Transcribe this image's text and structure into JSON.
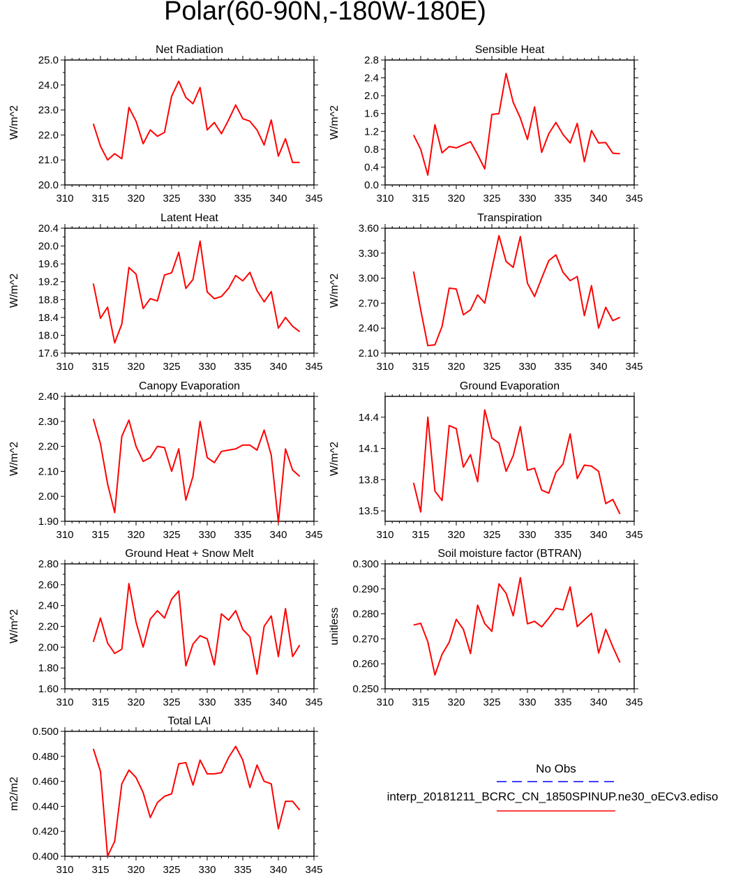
{
  "figure": {
    "title": "Polar(60-90N,-180W-180E)",
    "legend": {
      "obs_label": "No Obs",
      "model_label": "interp_20181211_BCRC_CN_1850SPINUP.ne30_oECv3.ediso",
      "obs_color": "#0000ff",
      "model_color": "#ff0000",
      "placement": "bottom-right"
    }
  },
  "chart_data": [
    {
      "id": "net-radiation",
      "type": "line",
      "title": "Net Radiation",
      "ylabel": "W/m^2",
      "xlim": [
        310,
        345
      ],
      "ylim": [
        20.0,
        25.0
      ],
      "xticks": [
        310,
        315,
        320,
        325,
        330,
        335,
        340,
        345
      ],
      "yticks": [
        "20.0",
        "21.0",
        "22.0",
        "23.0",
        "24.0",
        "25.0"
      ],
      "x": [
        314,
        315,
        316,
        317,
        318,
        319,
        320,
        321,
        322,
        323,
        324,
        325,
        326,
        327,
        328,
        329,
        330,
        331,
        332,
        333,
        334,
        335,
        336,
        337,
        338,
        339,
        340,
        341,
        342,
        343
      ],
      "series": [
        {
          "name": "model",
          "color": "#ff0000",
          "values": [
            22.45,
            21.55,
            21.0,
            21.25,
            21.05,
            23.1,
            22.55,
            21.65,
            22.2,
            21.95,
            22.1,
            23.55,
            24.15,
            23.5,
            23.25,
            23.9,
            22.2,
            22.5,
            22.05,
            22.6,
            23.2,
            22.65,
            22.55,
            22.2,
            21.6,
            22.6,
            21.15,
            21.85,
            20.9,
            20.9
          ]
        }
      ]
    },
    {
      "id": "sensible-heat",
      "type": "line",
      "title": "Sensible Heat",
      "ylabel": "W/m^2",
      "xlim": [
        310,
        345
      ],
      "ylim": [
        0.0,
        2.8
      ],
      "xticks": [
        310,
        315,
        320,
        325,
        330,
        335,
        340,
        345
      ],
      "yticks": [
        "0.0",
        "0.4",
        "0.8",
        "1.2",
        "1.6",
        "2.0",
        "2.4",
        "2.8"
      ],
      "x": [
        314,
        315,
        316,
        317,
        318,
        319,
        320,
        321,
        322,
        323,
        324,
        325,
        326,
        327,
        328,
        329,
        330,
        331,
        332,
        333,
        334,
        335,
        336,
        337,
        338,
        339,
        340,
        341,
        342,
        343
      ],
      "series": [
        {
          "name": "model",
          "color": "#ff0000",
          "values": [
            1.12,
            0.8,
            0.22,
            1.35,
            0.72,
            0.86,
            0.83,
            0.9,
            0.97,
            0.68,
            0.36,
            1.58,
            1.6,
            2.5,
            1.85,
            1.5,
            1.02,
            1.75,
            0.73,
            1.15,
            1.4,
            1.13,
            0.94,
            1.38,
            0.52,
            1.22,
            0.94,
            0.95,
            0.71,
            0.7
          ]
        }
      ]
    },
    {
      "id": "latent-heat",
      "type": "line",
      "title": "Latent Heat",
      "ylabel": "W/m^2",
      "xlim": [
        310,
        345
      ],
      "ylim": [
        17.6,
        20.4
      ],
      "xticks": [
        310,
        315,
        320,
        325,
        330,
        335,
        340,
        345
      ],
      "yticks": [
        "17.6",
        "18.0",
        "18.4",
        "18.8",
        "19.2",
        "19.6",
        "20.0",
        "20.4"
      ],
      "x": [
        314,
        315,
        316,
        317,
        318,
        319,
        320,
        321,
        322,
        323,
        324,
        325,
        326,
        327,
        328,
        329,
        330,
        331,
        332,
        333,
        334,
        335,
        336,
        337,
        338,
        339,
        340,
        341,
        342,
        343
      ],
      "series": [
        {
          "name": "model",
          "color": "#ff0000",
          "values": [
            19.16,
            18.38,
            18.63,
            17.83,
            18.25,
            19.52,
            19.37,
            18.6,
            18.82,
            18.77,
            19.35,
            19.4,
            19.86,
            19.05,
            19.25,
            20.11,
            18.97,
            18.82,
            18.87,
            19.05,
            19.34,
            19.22,
            19.41,
            19.0,
            18.75,
            18.98,
            18.16,
            18.4,
            18.2,
            18.08
          ]
        }
      ]
    },
    {
      "id": "transpiration",
      "type": "line",
      "title": "Transpiration",
      "ylabel": "W/m^2",
      "xlim": [
        310,
        345
      ],
      "ylim": [
        2.1,
        3.6
      ],
      "xticks": [
        310,
        315,
        320,
        325,
        330,
        335,
        340,
        345
      ],
      "yticks": [
        "2.10",
        "2.40",
        "2.70",
        "3.00",
        "3.30",
        "3.60"
      ],
      "x": [
        314,
        315,
        316,
        317,
        318,
        319,
        320,
        321,
        322,
        323,
        324,
        325,
        326,
        327,
        328,
        329,
        330,
        331,
        332,
        333,
        334,
        335,
        336,
        337,
        338,
        339,
        340,
        341,
        342,
        343
      ],
      "series": [
        {
          "name": "model",
          "color": "#ff0000",
          "values": [
            3.08,
            2.62,
            2.19,
            2.2,
            2.42,
            2.88,
            2.87,
            2.56,
            2.62,
            2.8,
            2.7,
            3.11,
            3.51,
            3.2,
            3.13,
            3.5,
            2.94,
            2.78,
            3.0,
            3.21,
            3.28,
            3.07,
            2.97,
            3.02,
            2.55,
            2.91,
            2.4,
            2.65,
            2.49,
            2.53
          ]
        }
      ]
    },
    {
      "id": "canopy-evaporation",
      "type": "line",
      "title": "Canopy Evaporation",
      "ylabel": "W/m^2",
      "xlim": [
        310,
        345
      ],
      "ylim": [
        1.9,
        2.4
      ],
      "xticks": [
        310,
        315,
        320,
        325,
        330,
        335,
        340,
        345
      ],
      "yticks": [
        "1.90",
        "2.00",
        "2.10",
        "2.20",
        "2.30",
        "2.40"
      ],
      "x": [
        314,
        315,
        316,
        317,
        318,
        319,
        320,
        321,
        322,
        323,
        324,
        325,
        326,
        327,
        328,
        329,
        330,
        331,
        332,
        333,
        334,
        335,
        336,
        337,
        338,
        339,
        340,
        341,
        342,
        343
      ],
      "series": [
        {
          "name": "model",
          "color": "#ff0000",
          "values": [
            2.31,
            2.21,
            2.05,
            1.935,
            2.24,
            2.305,
            2.2,
            2.14,
            2.155,
            2.2,
            2.195,
            2.1,
            2.19,
            1.985,
            2.08,
            2.3,
            2.155,
            2.135,
            2.18,
            2.185,
            2.19,
            2.205,
            2.205,
            2.185,
            2.265,
            2.165,
            1.895,
            2.19,
            2.105,
            2.08
          ]
        }
      ]
    },
    {
      "id": "ground-evaporation",
      "type": "line",
      "title": "Ground Evaporation",
      "ylabel": "W/m^2",
      "xlim": [
        310,
        345
      ],
      "ylim": [
        13.4,
        14.6
      ],
      "xticks": [
        310,
        315,
        320,
        325,
        330,
        335,
        340,
        345
      ],
      "yticks": [
        "13.5",
        "13.8",
        "14.1",
        "14.4"
      ],
      "x": [
        314,
        315,
        316,
        317,
        318,
        319,
        320,
        321,
        322,
        323,
        324,
        325,
        326,
        327,
        328,
        329,
        330,
        331,
        332,
        333,
        334,
        335,
        336,
        337,
        338,
        339,
        340,
        341,
        342,
        343
      ],
      "series": [
        {
          "name": "model",
          "color": "#ff0000",
          "values": [
            13.77,
            13.49,
            14.4,
            13.69,
            13.6,
            14.32,
            14.29,
            13.92,
            14.04,
            13.78,
            14.47,
            14.2,
            14.15,
            13.88,
            14.03,
            14.31,
            13.89,
            13.91,
            13.7,
            13.67,
            13.87,
            13.95,
            14.24,
            13.81,
            13.94,
            13.93,
            13.88,
            13.57,
            13.61,
            13.47
          ]
        }
      ]
    },
    {
      "id": "ground-heat-snow-melt",
      "type": "line",
      "title": "Ground Heat + Snow Melt",
      "ylabel": "W/m^2",
      "xlim": [
        310,
        345
      ],
      "ylim": [
        1.6,
        2.8
      ],
      "xticks": [
        310,
        315,
        320,
        325,
        330,
        335,
        340,
        345
      ],
      "yticks": [
        "1.60",
        "1.80",
        "2.00",
        "2.20",
        "2.40",
        "2.60",
        "2.80"
      ],
      "x": [
        314,
        315,
        316,
        317,
        318,
        319,
        320,
        321,
        322,
        323,
        324,
        325,
        326,
        327,
        328,
        329,
        330,
        331,
        332,
        333,
        334,
        335,
        336,
        337,
        338,
        339,
        340,
        341,
        342,
        343
      ],
      "series": [
        {
          "name": "model",
          "color": "#ff0000",
          "values": [
            2.05,
            2.28,
            2.04,
            1.94,
            1.98,
            2.61,
            2.24,
            2.0,
            2.27,
            2.35,
            2.28,
            2.46,
            2.54,
            1.82,
            2.03,
            2.11,
            2.08,
            1.83,
            2.32,
            2.26,
            2.35,
            2.17,
            2.1,
            1.74,
            2.2,
            2.3,
            1.91,
            2.37,
            1.91,
            2.02
          ]
        }
      ]
    },
    {
      "id": "soil-moisture-factor",
      "type": "line",
      "title": "Soil moisture factor (BTRAN)",
      "ylabel": "unitless",
      "xlim": [
        310,
        345
      ],
      "ylim": [
        0.25,
        0.3
      ],
      "xticks": [
        310,
        315,
        320,
        325,
        330,
        335,
        340,
        345
      ],
      "yticks": [
        "0.250",
        "0.260",
        "0.270",
        "0.280",
        "0.290",
        "0.300"
      ],
      "x": [
        314,
        315,
        316,
        317,
        318,
        319,
        320,
        321,
        322,
        323,
        324,
        325,
        326,
        327,
        328,
        329,
        330,
        331,
        332,
        333,
        334,
        335,
        336,
        337,
        338,
        339,
        340,
        341,
        342,
        343
      ],
      "series": [
        {
          "name": "model",
          "color": "#ff0000",
          "values": [
            0.2755,
            0.2762,
            0.2688,
            0.2555,
            0.2638,
            0.2686,
            0.2778,
            0.2738,
            0.2641,
            0.2835,
            0.2761,
            0.273,
            0.292,
            0.2882,
            0.2792,
            0.2945,
            0.276,
            0.277,
            0.2748,
            0.2783,
            0.2822,
            0.2816,
            0.2908,
            0.2749,
            0.2776,
            0.2802,
            0.2643,
            0.2738,
            0.2668,
            0.2605
          ]
        }
      ]
    },
    {
      "id": "total-lai",
      "type": "line",
      "title": "Total LAI",
      "ylabel": "m2/m2",
      "xlim": [
        310,
        345
      ],
      "ylim": [
        0.4,
        0.5
      ],
      "xticks": [
        310,
        315,
        320,
        325,
        330,
        335,
        340,
        345
      ],
      "yticks": [
        "0.400",
        "0.420",
        "0.440",
        "0.460",
        "0.480",
        "0.500"
      ],
      "x": [
        314,
        315,
        316,
        317,
        318,
        319,
        320,
        321,
        322,
        323,
        324,
        325,
        326,
        327,
        328,
        329,
        330,
        331,
        332,
        333,
        334,
        335,
        336,
        337,
        338,
        339,
        340,
        341,
        342,
        343
      ],
      "series": [
        {
          "name": "model",
          "color": "#ff0000",
          "values": [
            0.486,
            0.468,
            0.4,
            0.412,
            0.458,
            0.469,
            0.463,
            0.451,
            0.431,
            0.443,
            0.448,
            0.45,
            0.474,
            0.475,
            0.457,
            0.477,
            0.466,
            0.466,
            0.467,
            0.479,
            0.488,
            0.477,
            0.455,
            0.473,
            0.46,
            0.458,
            0.422,
            0.444,
            0.444,
            0.437
          ]
        }
      ]
    }
  ]
}
